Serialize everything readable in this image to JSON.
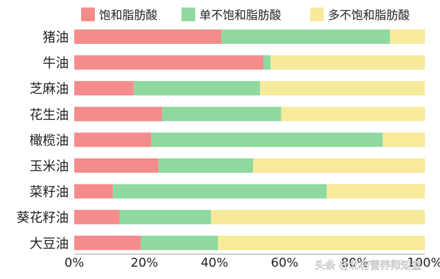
{
  "chart_data": {
    "type": "bar",
    "orientation": "horizontal",
    "stacked": true,
    "categories": [
      "猪油",
      "牛油",
      "芝麻油",
      "花生油",
      "橄榄油",
      "玉米油",
      "菜籽油",
      "葵花籽油",
      "大豆油"
    ],
    "series": [
      {
        "name": "饱和脂肪酸",
        "color": "#f58c8c",
        "values": [
          42,
          54,
          17,
          25,
          22,
          24,
          11,
          13,
          19
        ]
      },
      {
        "name": "单不饱和脂肪酸",
        "color": "#8fd9a0",
        "values": [
          48,
          2,
          36,
          34,
          66,
          27,
          61,
          26,
          22
        ]
      },
      {
        "name": "多不饱和脂肪酸",
        "color": "#f7ea9a",
        "values": [
          10,
          44,
          47,
          41,
          12,
          49,
          28,
          61,
          59
        ]
      }
    ],
    "x_ticks": [
      "0%",
      "20%",
      "40%",
      "60%",
      "80%",
      "100%"
    ],
    "xlim": [
      0,
      100
    ],
    "grid": false,
    "legend_position": "top"
  },
  "watermark": {
    "text": "头条 @北有营养师知道",
    "icon": "at-sign-icon"
  }
}
